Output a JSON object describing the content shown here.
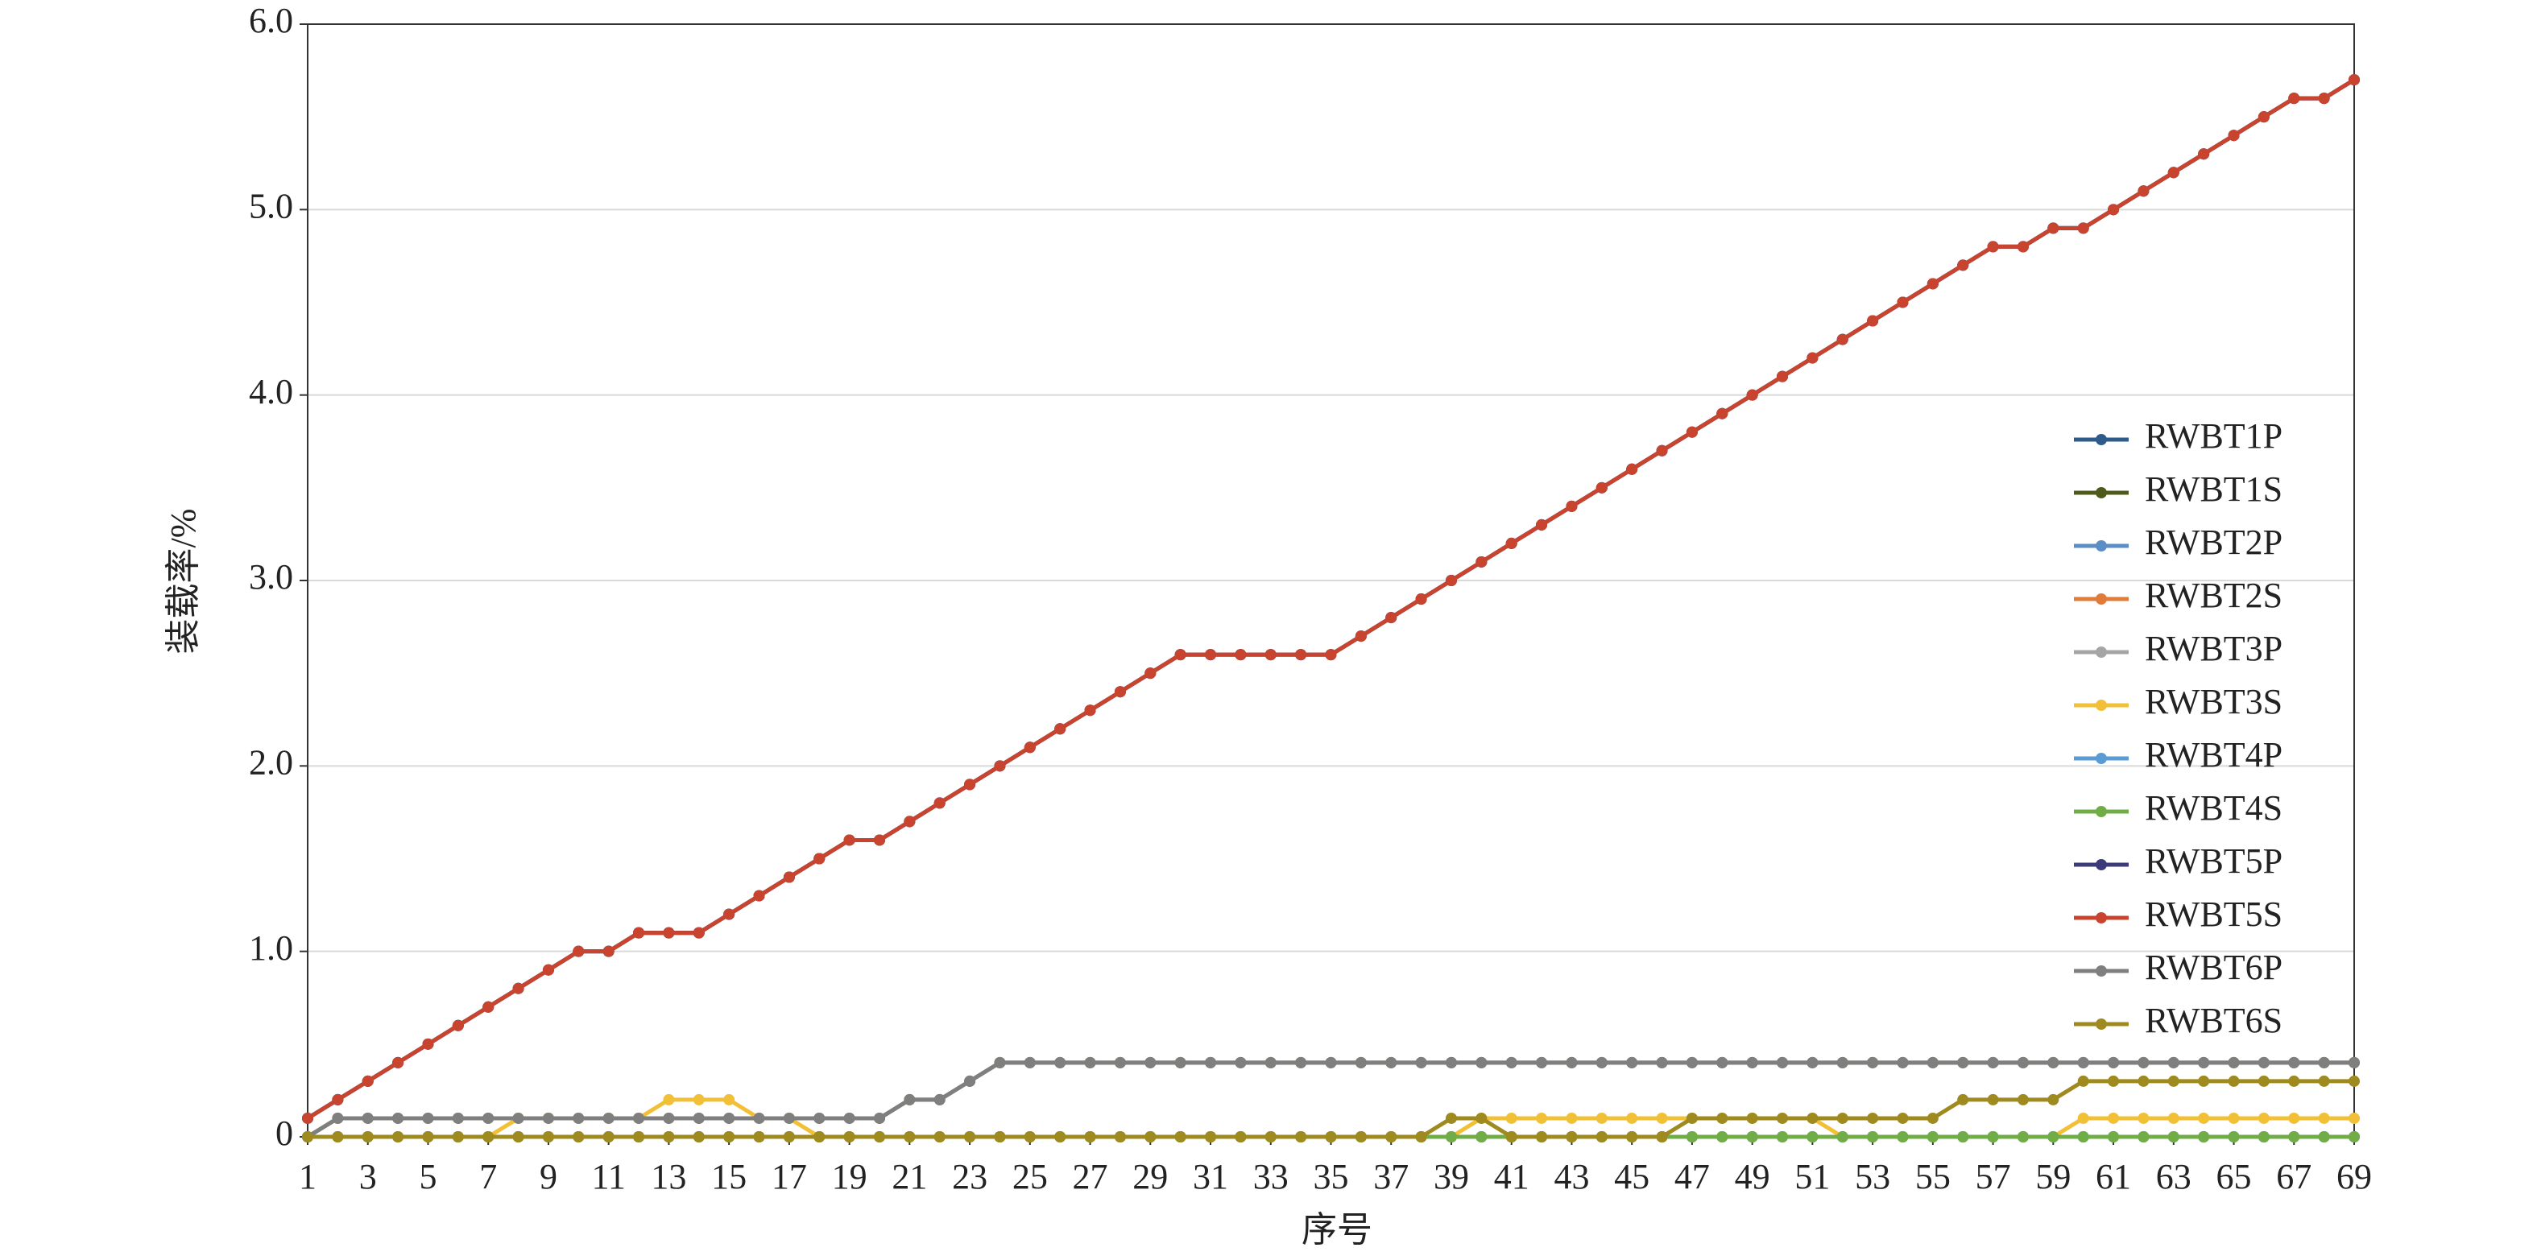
{
  "chart_data": {
    "type": "line",
    "x_label": "序号",
    "y_label": "装载率/%",
    "x": [
      1,
      2,
      3,
      4,
      5,
      6,
      7,
      8,
      9,
      10,
      11,
      12,
      13,
      14,
      15,
      16,
      17,
      18,
      19,
      20,
      21,
      22,
      23,
      24,
      25,
      26,
      27,
      28,
      29,
      30,
      31,
      32,
      33,
      34,
      35,
      36,
      37,
      38,
      39,
      40,
      41,
      42,
      43,
      44,
      45,
      46,
      47,
      48,
      49,
      50,
      51,
      52,
      53,
      54,
      55,
      56,
      57,
      58,
      59,
      60,
      61,
      62,
      63,
      64,
      65,
      66,
      67,
      68,
      69
    ],
    "xlim": [
      1,
      69
    ],
    "xticks": [
      1,
      3,
      5,
      7,
      9,
      11,
      13,
      15,
      17,
      19,
      21,
      23,
      25,
      27,
      29,
      31,
      33,
      35,
      37,
      39,
      41,
      43,
      45,
      47,
      49,
      51,
      53,
      55,
      57,
      59,
      61,
      63,
      65,
      67,
      69
    ],
    "ylim": [
      0,
      6
    ],
    "yticks": [
      0,
      {
        "value": 1,
        "label": "1.0"
      },
      {
        "value": 2,
        "label": "2.0"
      },
      {
        "value": 3,
        "label": "3.0"
      },
      {
        "value": 4,
        "label": "4.0"
      },
      {
        "value": 5,
        "label": "5.0"
      },
      {
        "value": 6,
        "label": "6.0"
      }
    ],
    "grid": true,
    "legend": "right",
    "series": [
      {
        "name": "RWBT1P",
        "color": "#2e5c8a",
        "values": [
          0.1,
          0.2,
          0.3,
          0.4,
          0.5,
          0.6,
          0.7,
          0.8,
          0.9,
          1.0,
          1.0,
          1.1,
          1.1,
          1.1,
          1.2,
          1.3,
          1.4,
          1.5,
          1.6,
          1.6,
          1.7,
          1.8,
          1.9,
          2.0,
          2.1,
          2.2,
          2.3,
          2.4,
          2.5,
          2.6,
          2.6,
          2.6,
          2.6,
          2.6,
          2.6,
          2.7,
          2.8,
          2.9,
          3.0,
          3.1,
          3.2,
          3.3,
          3.4,
          3.5,
          3.6,
          3.7,
          3.8,
          3.9,
          4.0,
          4.1,
          4.2,
          4.3,
          4.4,
          4.5,
          4.6,
          4.7,
          4.8,
          4.8,
          4.9,
          4.9,
          5.0,
          5.1,
          5.2,
          5.3,
          5.4,
          5.5,
          5.6,
          5.6,
          5.7
        ]
      },
      {
        "name": "RWBT1S",
        "color": "#4d5a1c",
        "values": [
          0,
          0.1,
          0.1,
          0.1,
          0.1,
          0.1,
          0.1,
          0.1,
          0.1,
          0.1,
          0.1,
          0.1,
          0.1,
          0.1,
          0.1,
          0.1,
          0.1,
          0.1,
          0.1,
          0.1,
          0.2,
          0.2,
          0.3,
          0.4,
          0.4,
          0.4,
          0.4,
          0.4,
          0.4,
          0.4,
          0.4,
          0.4,
          0.4,
          0.4,
          0.4,
          0.4,
          0.4,
          0.4,
          0.4,
          0.4,
          0.4,
          0.4,
          0.4,
          0.4,
          0.4,
          0.4,
          0.4,
          0.4,
          0.4,
          0.4,
          0.4,
          0.4,
          0.4,
          0.4,
          0.4,
          0.4,
          0.4,
          0.4,
          0.4,
          0.4,
          0.4,
          0.4,
          0.4,
          0.4,
          0.4,
          0.4,
          0.4,
          0.4,
          0.4
        ]
      },
      {
        "name": "RWBT2P",
        "color": "#5b8ec4",
        "values": [
          0.1,
          0.2,
          0.3,
          0.4,
          0.5,
          0.6,
          0.7,
          0.8,
          0.9,
          1.0,
          1.0,
          1.1,
          1.1,
          1.1,
          1.2,
          1.3,
          1.4,
          1.5,
          1.6,
          1.6,
          1.7,
          1.8,
          1.9,
          2.0,
          2.1,
          2.2,
          2.3,
          2.4,
          2.5,
          2.6,
          2.6,
          2.6,
          2.6,
          2.6,
          2.6,
          2.7,
          2.8,
          2.9,
          3.0,
          3.1,
          3.2,
          3.3,
          3.4,
          3.5,
          3.6,
          3.7,
          3.8,
          3.9,
          4.0,
          4.1,
          4.2,
          4.3,
          4.4,
          4.5,
          4.6,
          4.7,
          4.8,
          4.8,
          4.9,
          4.9,
          5.0,
          5.1,
          5.2,
          5.3,
          5.4,
          5.5,
          5.6,
          5.6,
          5.7
        ]
      },
      {
        "name": "RWBT2S",
        "color": "#e07b39",
        "values": [
          0,
          0,
          0,
          0,
          0,
          0,
          0,
          0,
          0,
          0,
          0,
          0,
          0,
          0,
          0,
          0,
          0,
          0,
          0,
          0,
          0,
          0,
          0,
          0,
          0,
          0,
          0,
          0,
          0,
          0,
          0,
          0,
          0,
          0,
          0,
          0,
          0,
          0,
          0,
          0,
          0,
          0,
          0,
          0,
          0,
          0,
          0,
          0,
          0,
          0,
          0,
          0,
          0,
          0,
          0,
          0,
          0,
          0,
          0,
          0,
          0,
          0,
          0,
          0,
          0,
          0,
          0,
          0,
          0
        ]
      },
      {
        "name": "RWBT3P",
        "color": "#a5a5a5",
        "values": [
          0,
          0,
          0,
          0,
          0,
          0,
          0,
          0,
          0,
          0,
          0,
          0,
          0,
          0,
          0,
          0,
          0,
          0,
          0,
          0,
          0,
          0,
          0,
          0,
          0,
          0,
          0,
          0,
          0,
          0,
          0,
          0,
          0,
          0,
          0,
          0,
          0,
          0,
          0,
          0,
          0,
          0,
          0,
          0,
          0,
          0,
          0,
          0,
          0,
          0,
          0,
          0,
          0,
          0,
          0,
          0,
          0,
          0,
          0,
          0,
          0,
          0,
          0,
          0,
          0,
          0,
          0,
          0,
          0
        ]
      },
      {
        "name": "RWBT3S",
        "color": "#f2c037",
        "values": [
          0,
          0,
          0,
          0,
          0,
          0,
          0,
          0.1,
          0.1,
          0.1,
          0.1,
          0.1,
          0.2,
          0.2,
          0.2,
          0.1,
          0.1,
          0,
          0,
          0,
          0,
          0,
          0,
          0,
          0,
          0,
          0,
          0,
          0,
          0,
          0,
          0,
          0,
          0,
          0,
          0,
          0,
          0,
          0,
          0.1,
          0.1,
          0.1,
          0.1,
          0.1,
          0.1,
          0.1,
          0.1,
          0.1,
          0.1,
          0.1,
          0.1,
          0,
          0,
          0,
          0,
          0,
          0,
          0,
          0,
          0.1,
          0.1,
          0.1,
          0.1,
          0.1,
          0.1,
          0.1,
          0.1,
          0.1,
          0.1
        ]
      },
      {
        "name": "RWBT4P",
        "color": "#5a9bd5",
        "values": [
          0,
          0,
          0,
          0,
          0,
          0,
          0,
          0,
          0,
          0,
          0,
          0,
          0,
          0,
          0,
          0,
          0,
          0,
          0,
          0,
          0,
          0,
          0,
          0,
          0,
          0,
          0,
          0,
          0,
          0,
          0,
          0,
          0,
          0,
          0,
          0,
          0,
          0,
          0,
          0,
          0,
          0,
          0,
          0,
          0,
          0,
          0,
          0,
          0,
          0,
          0,
          0,
          0,
          0,
          0,
          0,
          0,
          0,
          0,
          0,
          0,
          0,
          0,
          0,
          0,
          0,
          0,
          0,
          0
        ]
      },
      {
        "name": "RWBT4S",
        "color": "#70ad47",
        "values": [
          0,
          0,
          0,
          0,
          0,
          0,
          0,
          0,
          0,
          0,
          0,
          0,
          0,
          0,
          0,
          0,
          0,
          0,
          0,
          0,
          0,
          0,
          0,
          0,
          0,
          0,
          0,
          0,
          0,
          0,
          0,
          0,
          0,
          0,
          0,
          0,
          0,
          0,
          0,
          0,
          0,
          0,
          0,
          0,
          0,
          0,
          0,
          0,
          0,
          0,
          0,
          0,
          0,
          0,
          0,
          0,
          0,
          0,
          0,
          0,
          0,
          0,
          0,
          0,
          0,
          0,
          0,
          0,
          0
        ]
      },
      {
        "name": "RWBT5P",
        "color": "#3d3a7a",
        "values": [
          0.1,
          0.2,
          0.3,
          0.4,
          0.5,
          0.6,
          0.7,
          0.8,
          0.9,
          1.0,
          1.0,
          1.1,
          1.1,
          1.1,
          1.2,
          1.3,
          1.4,
          1.5,
          1.6,
          1.6,
          1.7,
          1.8,
          1.9,
          2.0,
          2.1,
          2.2,
          2.3,
          2.4,
          2.5,
          2.6,
          2.6,
          2.6,
          2.6,
          2.6,
          2.6,
          2.7,
          2.8,
          2.9,
          3.0,
          3.1,
          3.2,
          3.3,
          3.4,
          3.5,
          3.6,
          3.7,
          3.8,
          3.9,
          4.0,
          4.1,
          4.2,
          4.3,
          4.4,
          4.5,
          4.6,
          4.7,
          4.8,
          4.8,
          4.9,
          4.9,
          5.0,
          5.1,
          5.2,
          5.3,
          5.4,
          5.5,
          5.6,
          5.6,
          5.7
        ]
      },
      {
        "name": "RWBT5S",
        "color": "#c8442e",
        "values": [
          0.1,
          0.2,
          0.3,
          0.4,
          0.5,
          0.6,
          0.7,
          0.8,
          0.9,
          1.0,
          1.0,
          1.1,
          1.1,
          1.1,
          1.2,
          1.3,
          1.4,
          1.5,
          1.6,
          1.6,
          1.7,
          1.8,
          1.9,
          2.0,
          2.1,
          2.2,
          2.3,
          2.4,
          2.5,
          2.6,
          2.6,
          2.6,
          2.6,
          2.6,
          2.6,
          2.7,
          2.8,
          2.9,
          3.0,
          3.1,
          3.2,
          3.3,
          3.4,
          3.5,
          3.6,
          3.7,
          3.8,
          3.9,
          4.0,
          4.1,
          4.2,
          4.3,
          4.4,
          4.5,
          4.6,
          4.7,
          4.8,
          4.8,
          4.9,
          4.9,
          5.0,
          5.1,
          5.2,
          5.3,
          5.4,
          5.5,
          5.6,
          5.6,
          5.7
        ]
      },
      {
        "name": "RWBT6P",
        "color": "#7f7f7f",
        "values": [
          0,
          0.1,
          0.1,
          0.1,
          0.1,
          0.1,
          0.1,
          0.1,
          0.1,
          0.1,
          0.1,
          0.1,
          0.1,
          0.1,
          0.1,
          0.1,
          0.1,
          0.1,
          0.1,
          0.1,
          0.2,
          0.2,
          0.3,
          0.4,
          0.4,
          0.4,
          0.4,
          0.4,
          0.4,
          0.4,
          0.4,
          0.4,
          0.4,
          0.4,
          0.4,
          0.4,
          0.4,
          0.4,
          0.4,
          0.4,
          0.4,
          0.4,
          0.4,
          0.4,
          0.4,
          0.4,
          0.4,
          0.4,
          0.4,
          0.4,
          0.4,
          0.4,
          0.4,
          0.4,
          0.4,
          0.4,
          0.4,
          0.4,
          0.4,
          0.4,
          0.4,
          0.4,
          0.4,
          0.4,
          0.4,
          0.4,
          0.4,
          0.4,
          0.4
        ]
      },
      {
        "name": "RWBT6S",
        "color": "#9e8a1e",
        "values": [
          0,
          0,
          0,
          0,
          0,
          0,
          0,
          0,
          0,
          0,
          0,
          0,
          0,
          0,
          0,
          0,
          0,
          0,
          0,
          0,
          0,
          0,
          0,
          0,
          0,
          0,
          0,
          0,
          0,
          0,
          0,
          0,
          0,
          0,
          0,
          0,
          0,
          0,
          0.1,
          0.1,
          0,
          0,
          0,
          0,
          0,
          0,
          0.1,
          0.1,
          0.1,
          0.1,
          0.1,
          0.1,
          0.1,
          0.1,
          0.1,
          0.2,
          0.2,
          0.2,
          0.2,
          0.3,
          0.3,
          0.3,
          0.3,
          0.3,
          0.3,
          0.3,
          0.3,
          0.3,
          0.3
        ]
      }
    ]
  }
}
